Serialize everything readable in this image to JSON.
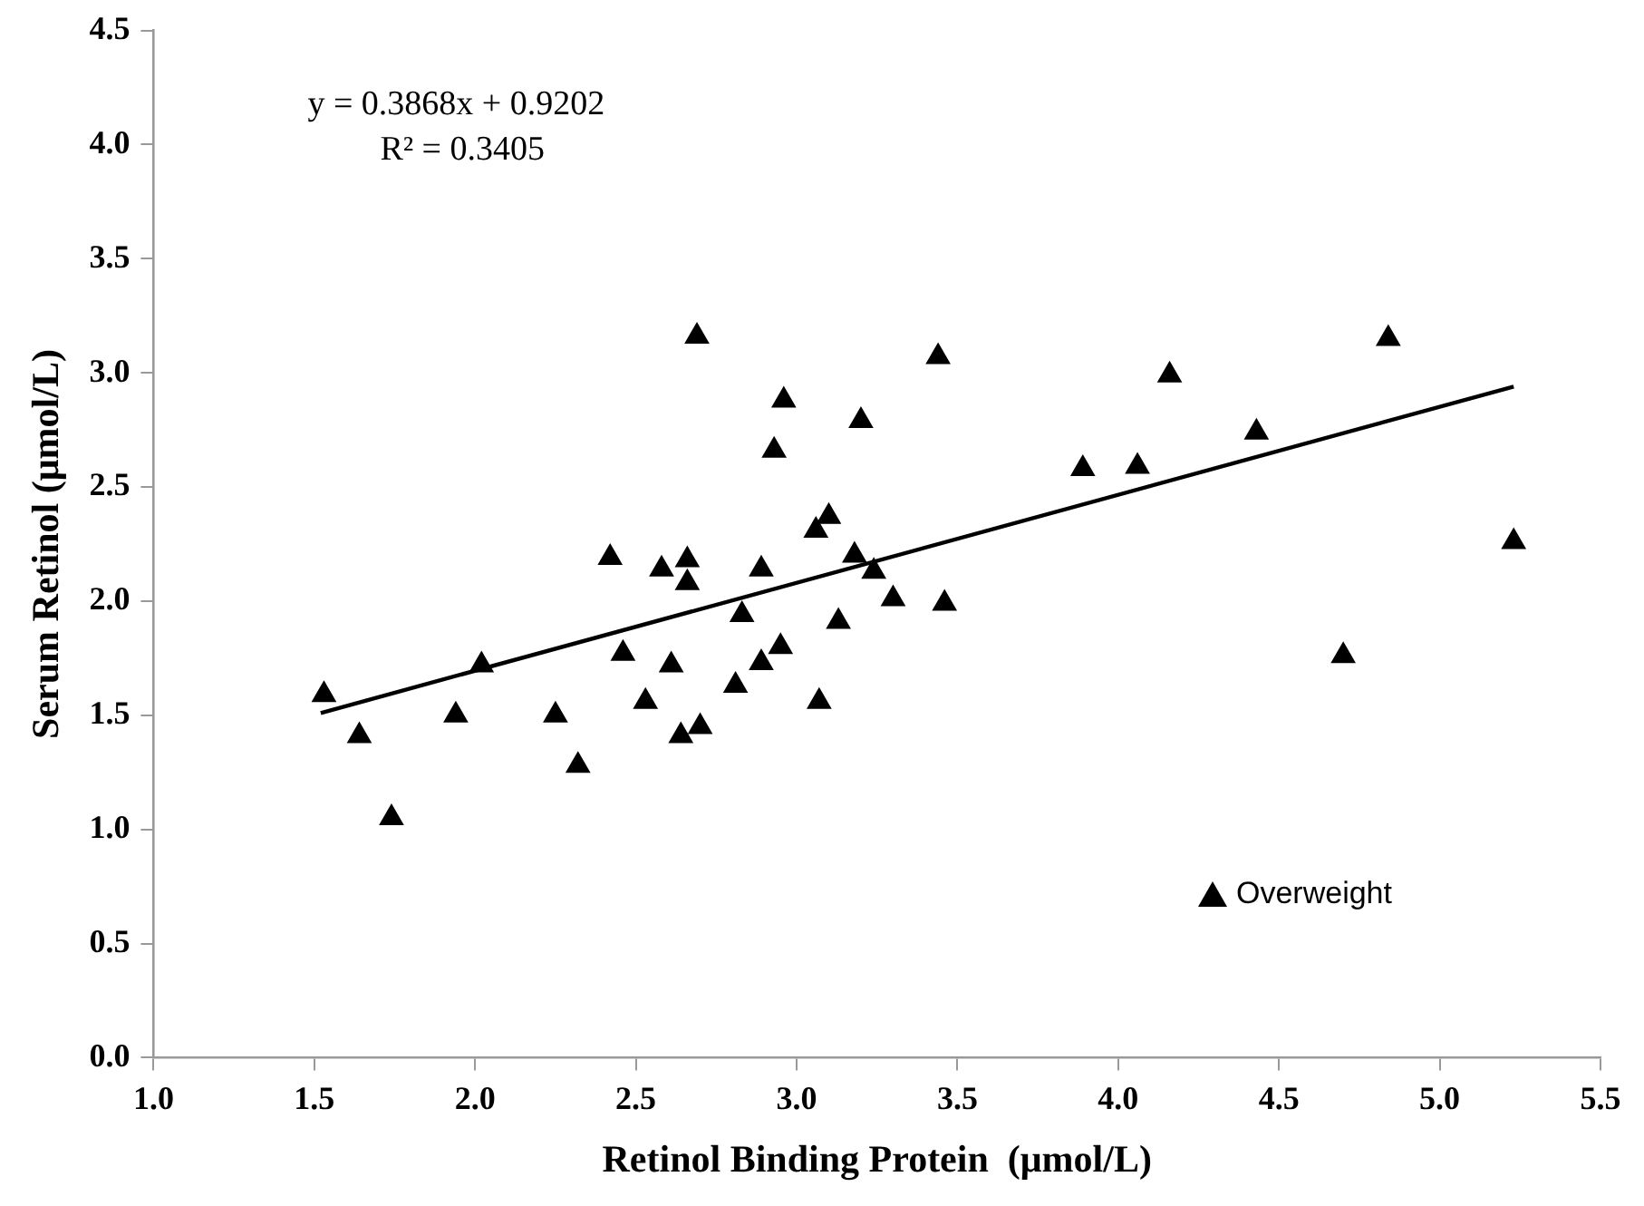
{
  "chart_data": {
    "type": "scatter",
    "xlabel": "Retinol Binding Protein  (μmol/L)",
    "ylabel": "Serum Retinol (μmol/L)",
    "annotations": [
      "y = 0.3868x + 0.9202",
      "R² = 0.3405"
    ],
    "xlim": [
      1.0,
      5.5
    ],
    "xticks": [
      {
        "value": 1,
        "label": "1.0"
      },
      1.5,
      {
        "value": 2,
        "label": "2.0"
      },
      2.5,
      {
        "value": 3,
        "label": "3.0"
      },
      3.5,
      {
        "value": 4,
        "label": "4.0"
      },
      4.5,
      {
        "value": 5,
        "label": "5.0"
      },
      5.5
    ],
    "ylim": [
      0,
      4.5
    ],
    "yticks": [
      {
        "value": 0,
        "label": "0.0"
      },
      0.5,
      {
        "value": 1,
        "label": "1.0"
      },
      1.5,
      {
        "value": 2,
        "label": "2.0"
      },
      2.5,
      {
        "value": 3,
        "label": "3.0"
      },
      3.5,
      {
        "value": 4,
        "label": "4.0"
      },
      4.5
    ],
    "grid": false,
    "legend": "bottom right",
    "marker": "triangle",
    "series": [
      {
        "name": "Overweight",
        "color": "#000000",
        "x": [
          1.53,
          1.64,
          1.74,
          1.94,
          2.02,
          2.25,
          2.32,
          2.42,
          2.46,
          2.69,
          3.44,
          2.96,
          3.2,
          2.93,
          3.1,
          3.06,
          2.58,
          2.66,
          2.66,
          2.89,
          3.18,
          3.24,
          3.3,
          3.46,
          2.83,
          3.13,
          2.61,
          2.95,
          2.89,
          2.53,
          2.81,
          3.07,
          2.64,
          2.7,
          3.89,
          4.06,
          4.16,
          4.43,
          4.84,
          5.23,
          4.7
        ],
        "values": [
          1.59,
          1.41,
          1.05,
          1.5,
          1.72,
          1.5,
          1.28,
          2.19,
          1.77,
          3.16,
          3.07,
          2.88,
          2.79,
          2.66,
          2.37,
          2.31,
          2.14,
          2.18,
          2.08,
          2.14,
          2.2,
          2.13,
          2.01,
          1.99,
          1.94,
          1.91,
          1.72,
          1.8,
          1.73,
          1.56,
          1.63,
          1.56,
          1.41,
          1.45,
          2.58,
          2.59,
          2.99,
          2.74,
          3.15,
          2.26,
          1.76
        ]
      },
      {
        "type": "line",
        "color": "#000000",
        "x": [
          1.52,
          5.23
        ],
        "values": [
          1.51,
          2.94
        ],
        "marker": "none",
        "line_style": "solid"
      }
    ]
  }
}
